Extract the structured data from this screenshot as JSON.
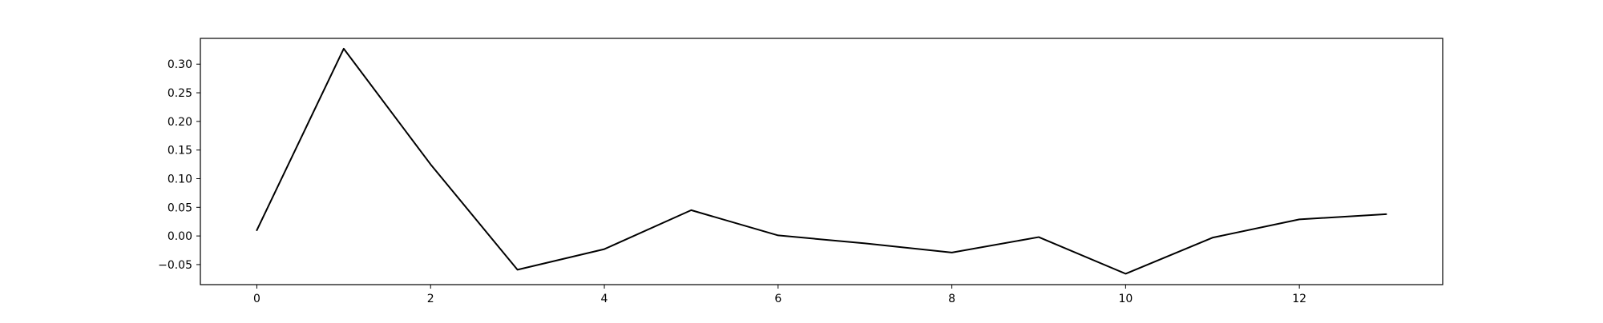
{
  "chart_data": {
    "type": "line",
    "title": "",
    "xlabel": "",
    "ylabel": "",
    "xlim": [
      -0.65,
      13.65
    ],
    "ylim": [
      -0.085,
      0.345
    ],
    "grid": false,
    "x_ticks": [
      0,
      2,
      4,
      6,
      8,
      10,
      12
    ],
    "x_tick_labels": [
      "0",
      "2",
      "4",
      "6",
      "8",
      "10",
      "12"
    ],
    "y_ticks": [
      -0.05,
      0.0,
      0.05,
      0.1,
      0.15,
      0.2,
      0.25,
      0.3
    ],
    "y_tick_labels": [
      "−0.05",
      "0.00",
      "0.05",
      "0.10",
      "0.15",
      "0.20",
      "0.25",
      "0.30"
    ],
    "series": [
      {
        "color": "#000000",
        "x": [
          0,
          1,
          2,
          3,
          4,
          5,
          6,
          7,
          8,
          9,
          10,
          11,
          12,
          13
        ],
        "y": [
          0.01,
          0.327,
          0.125,
          -0.059,
          -0.023,
          0.045,
          0.001,
          -0.013,
          -0.029,
          -0.002,
          -0.066,
          -0.003,
          0.029,
          0.038
        ]
      }
    ]
  }
}
